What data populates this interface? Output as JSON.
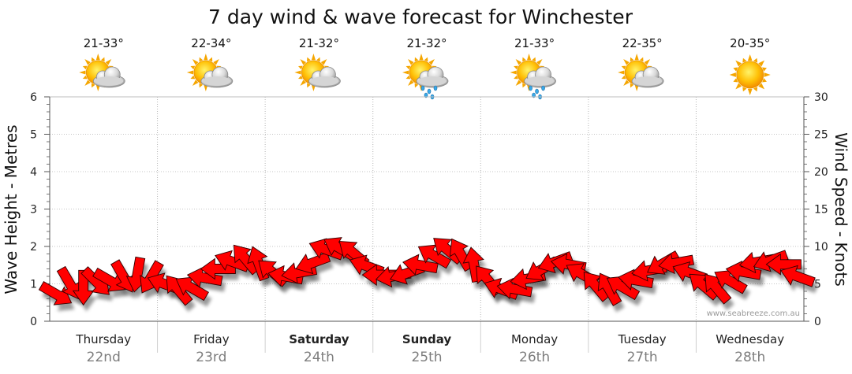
{
  "chart_data": {
    "type": "line",
    "title": "7 day wind & wave forecast for Winchester",
    "ylabel_left": "Wave Height - Metres",
    "ylabel_right": "Wind Speed - Knots",
    "ylim_left": [
      0,
      6
    ],
    "ylim_right": [
      0,
      30
    ],
    "yticks_left": [
      "0",
      "1",
      "2",
      "3",
      "4",
      "5",
      "6"
    ],
    "yticks_right": [
      "0",
      "5",
      "10",
      "15",
      "20",
      "25",
      "30"
    ],
    "grid": true,
    "credit": "www.seabreeze.com.au",
    "days": [
      {
        "name": "Thursday",
        "date": "22nd",
        "temp": "21-33°",
        "icon": "sun-cloud-icon",
        "bold": false
      },
      {
        "name": "Friday",
        "date": "23rd",
        "temp": "22-34°",
        "icon": "sun-cloud-icon",
        "bold": false
      },
      {
        "name": "Saturday",
        "date": "24th",
        "temp": "21-32°",
        "icon": "sun-cloud-icon",
        "bold": true
      },
      {
        "name": "Sunday",
        "date": "25th",
        "temp": "21-32°",
        "icon": "sun-cloud-rain-icon",
        "bold": true
      },
      {
        "name": "Monday",
        "date": "26th",
        "temp": "21-33°",
        "icon": "sun-cloud-rain-icon",
        "bold": false
      },
      {
        "name": "Tuesday",
        "date": "27th",
        "temp": "22-35°",
        "icon": "sun-cloud-icon",
        "bold": false
      },
      {
        "name": "Wednesday",
        "date": "28th",
        "temp": "20-35°",
        "icon": "sun-icon",
        "bold": false
      }
    ],
    "series": [
      {
        "type": "wind-arrows",
        "color": "#ff0000",
        "wind_knots": [
          3.6,
          5,
          4.5,
          5.2,
          5.4,
          5.9,
          6.2,
          5.8,
          5,
          4.3,
          4.5,
          5.8,
          7,
          8,
          8.4,
          7.8,
          6.6,
          6,
          6.5,
          7.8,
          9.6,
          9.8,
          9.2,
          7.4,
          6.2,
          6,
          6.4,
          7.5,
          8.8,
          9.6,
          9,
          7.6,
          5.6,
          4.3,
          4.3,
          5.7,
          6.9,
          7.9,
          7.6,
          6.3,
          4.8,
          4.4,
          4.6,
          5.5,
          6.8,
          7.7,
          7.8,
          6.5,
          4.8,
          4.5,
          5.4,
          6.6,
          7.9,
          8.1,
          7.6,
          6
        ],
        "wind_dir_deg": [
          30,
          60,
          90,
          45,
          30,
          60,
          100,
          120,
          200,
          230,
          210,
          190,
          180,
          200,
          230,
          250,
          220,
          190,
          170,
          160,
          200,
          210,
          220,
          200,
          180,
          170,
          160,
          190,
          210,
          220,
          240,
          260,
          230,
          200,
          190,
          170,
          150,
          160,
          190,
          210,
          230,
          240,
          210,
          190,
          170,
          150,
          170,
          200,
          220,
          230,
          210,
          190,
          170,
          160,
          180,
          200
        ]
      }
    ]
  }
}
